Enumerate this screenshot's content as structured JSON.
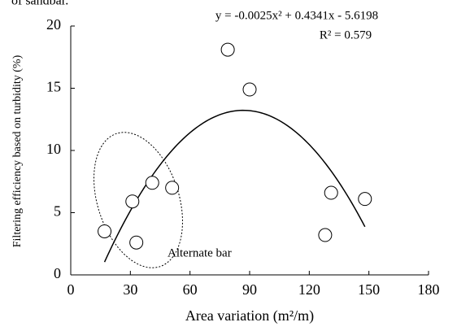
{
  "chart_data": {
    "type": "scatter",
    "caption_fragment": "of sandbar.",
    "x_label": "Area variation (m²/m)",
    "y_label": "Filtering efficiency based on turbidity (%)",
    "x": [
      17,
      31,
      33,
      41,
      51,
      79,
      90,
      128,
      131,
      148
    ],
    "values": [
      3.5,
      5.9,
      2.6,
      7.4,
      7.0,
      18.1,
      14.9,
      3.2,
      6.6,
      6.1
    ],
    "marker_fill": "#ffffff",
    "marker_stroke": "#000000",
    "xlim": [
      0,
      180
    ],
    "xticks": [
      0,
      30,
      60,
      90,
      120,
      150,
      180
    ],
    "ylim": [
      0,
      20
    ],
    "yticks": [
      0,
      5,
      10,
      15,
      20
    ],
    "grid": false,
    "trendline": {
      "equation": "y = -0.0025x² + 0.4341x - 5.6198",
      "r_squared": "R² = 0.579",
      "coefficients": [
        -0.0025,
        0.4341,
        -5.6198
      ],
      "x_range": [
        17,
        148
      ],
      "color": "#000000"
    },
    "annotation": "Alternate bar"
  }
}
